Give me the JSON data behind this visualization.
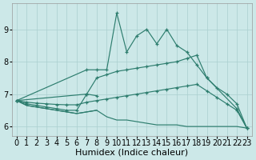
{
  "xlabel": "Humidex (Indice chaleur)",
  "ylim": [
    5.7,
    9.8
  ],
  "yticks": [
    6,
    7,
    8,
    9
  ],
  "xlim": [
    -0.5,
    23.5
  ],
  "line_color": "#2d7d6e",
  "bg_color": "#cce8e8",
  "grid_color": "#aacfcf",
  "axis_label_fontsize": 8,
  "tick_fontsize": 7,
  "line1_x": [
    0,
    7,
    8,
    9,
    10,
    11,
    12,
    13,
    14,
    15,
    16,
    17,
    18,
    19,
    22,
    23
  ],
  "line1_y": [
    6.8,
    7.75,
    7.75,
    7.75,
    9.5,
    8.3,
    8.8,
    9.0,
    8.55,
    9.0,
    8.5,
    8.3,
    7.9,
    7.5,
    6.55,
    5.95
  ],
  "line2_x": [
    0,
    7,
    8,
    9,
    10,
    11,
    12,
    13,
    14,
    15,
    16,
    17,
    18,
    19,
    20,
    21,
    22,
    23
  ],
  "line2_y": [
    6.8,
    7.0,
    7.5,
    7.6,
    7.7,
    7.75,
    7.8,
    7.85,
    7.9,
    7.95,
    8.0,
    8.1,
    8.2,
    7.5,
    7.2,
    7.0,
    6.7,
    5.95
  ],
  "line3_x": [
    0,
    1,
    2,
    3,
    4,
    5,
    6,
    7,
    8,
    9,
    10,
    11,
    12,
    13,
    14,
    15,
    16,
    17,
    18,
    19,
    20,
    21,
    22,
    23
  ],
  "line3_y": [
    6.8,
    6.75,
    6.72,
    6.7,
    6.68,
    6.67,
    6.67,
    6.75,
    6.8,
    6.85,
    6.9,
    6.95,
    7.0,
    7.05,
    7.1,
    7.15,
    7.2,
    7.25,
    7.3,
    7.1,
    6.9,
    6.7,
    6.5,
    5.95
  ],
  "line4_x": [
    0,
    1,
    2,
    3,
    4,
    5,
    6,
    7,
    8,
    9,
    10,
    11,
    12,
    13,
    14,
    15,
    16,
    17,
    18,
    19,
    20,
    21,
    22,
    23
  ],
  "line4_y": [
    6.8,
    6.65,
    6.6,
    6.55,
    6.5,
    6.45,
    6.4,
    6.45,
    6.5,
    6.3,
    6.2,
    6.2,
    6.15,
    6.1,
    6.05,
    6.05,
    6.05,
    6.0,
    6.0,
    6.0,
    6.0,
    6.0,
    6.0,
    5.95
  ],
  "line5_x": [
    0,
    1,
    2,
    3,
    4,
    5,
    6,
    7,
    8
  ],
  "line5_y": [
    6.8,
    6.7,
    6.65,
    6.6,
    6.55,
    6.5,
    6.5,
    7.0,
    6.95
  ],
  "line6_x": [
    0,
    1,
    2,
    3,
    4,
    5,
    6,
    7,
    8
  ],
  "line6_y": [
    6.8,
    6.65,
    6.6,
    6.55,
    6.5,
    6.45,
    6.4,
    6.45,
    6.5
  ]
}
